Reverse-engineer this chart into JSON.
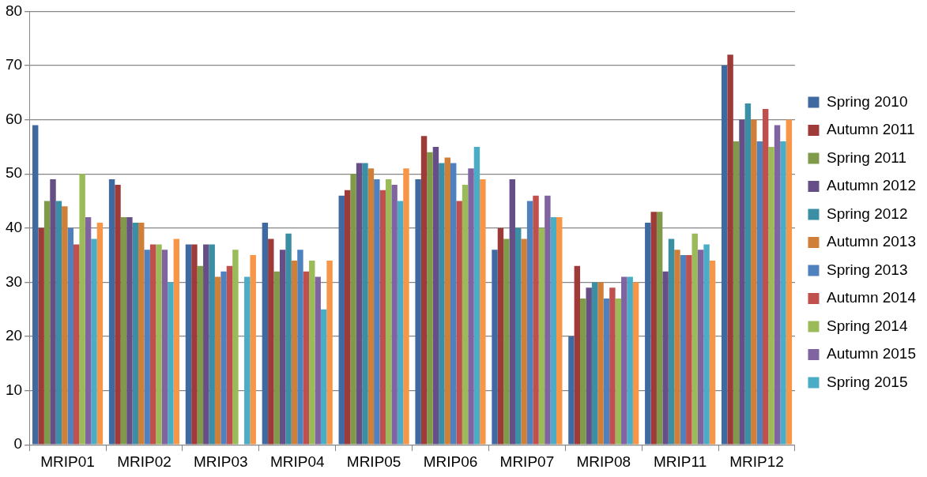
{
  "chart_data": {
    "type": "bar",
    "categories": [
      "MRIP01",
      "MRIP02",
      "MRIP03",
      "MRIP04",
      "MRIP05",
      "MRIP06",
      "MRIP07",
      "MRIP08",
      "MRIP11",
      "MRIP12"
    ],
    "series": [
      {
        "name": "Spring 2010",
        "color": "#3f6aa1",
        "values": [
          59,
          49,
          37,
          41,
          46,
          49,
          36,
          20,
          41,
          70
        ]
      },
      {
        "name": "Autumn 2011",
        "color": "#9e3b39",
        "values": [
          40,
          48,
          37,
          38,
          47,
          57,
          40,
          33,
          43,
          72
        ]
      },
      {
        "name": "Spring 2011",
        "color": "#7f9a48",
        "values": [
          45,
          42,
          33,
          32,
          50,
          54,
          38,
          27,
          43,
          56
        ]
      },
      {
        "name": "Autumn 2012",
        "color": "#664e87",
        "values": [
          49,
          42,
          37,
          36,
          52,
          55,
          49,
          29,
          32,
          60
        ]
      },
      {
        "name": "Spring 2012",
        "color": "#3a8fa4",
        "values": [
          45,
          41,
          37,
          39,
          52,
          52,
          40,
          30,
          38,
          63
        ]
      },
      {
        "name": "Autumn 2013",
        "color": "#d07f38",
        "values": [
          44,
          41,
          31,
          34,
          51,
          53,
          38,
          30,
          36,
          60
        ]
      },
      {
        "name": "Spring 2013",
        "color": "#4e81bd",
        "values": [
          40,
          36,
          32,
          36,
          49,
          52,
          45,
          27,
          35,
          56
        ]
      },
      {
        "name": "Autumn 2014",
        "color": "#c0504d",
        "values": [
          37,
          37,
          33,
          32,
          47,
          45,
          46,
          29,
          35,
          62
        ]
      },
      {
        "name": "Spring 2014",
        "color": "#9bbb59",
        "values": [
          50,
          37,
          36,
          34,
          49,
          48,
          40,
          27,
          39,
          55
        ]
      },
      {
        "name": "Autumn 2015",
        "color": "#8064a2",
        "values": [
          42,
          36,
          null,
          31,
          48,
          51,
          46,
          31,
          36,
          59
        ]
      },
      {
        "name": "Spring 2015",
        "color": "#4bacc6",
        "values": [
          38,
          30,
          31,
          25,
          45,
          55,
          42,
          31,
          37,
          56
        ]
      },
      {
        "color": "#f79646",
        "values": [
          41,
          38,
          35,
          34,
          51,
          49,
          42,
          30,
          34,
          60
        ]
      }
    ],
    "ylim": [
      0,
      80
    ],
    "yticks": [
      0,
      10,
      20,
      30,
      40,
      50,
      60,
      70,
      80
    ],
    "grid": "y",
    "legend": "right"
  }
}
